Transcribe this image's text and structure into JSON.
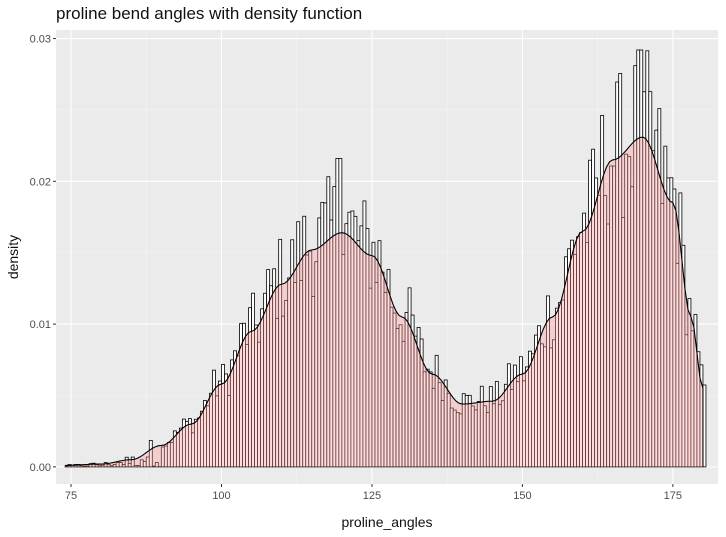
{
  "chart_data": {
    "type": "histogram",
    "title": "proline bend angles with density function",
    "xlabel": "proline_angles",
    "ylabel": "density",
    "xlim": [
      72.5,
      182.5
    ],
    "ylim": [
      -0.0012,
      0.0306
    ],
    "x_ticks": [
      75,
      100,
      125,
      150,
      175
    ],
    "y_ticks": [
      0.0,
      0.01,
      0.02,
      0.03
    ],
    "x_tick_labels": [
      "75",
      "100",
      "125",
      "150",
      "175"
    ],
    "y_tick_labels": [
      "0.00",
      "0.01",
      "0.02",
      "0.03"
    ],
    "grid": true,
    "colors": {
      "panel": "#ebebeb",
      "grid_major": "#ffffff",
      "grid_minor": "#f4f4f4",
      "bar_fill": "#ffffff",
      "bar_stroke": "#000000",
      "density_fill": "#ff9999",
      "density_fill_opacity": 0.35,
      "density_line": "#000000"
    },
    "bin_width": 0.5,
    "bins_start": 74,
    "histogram_peaks": [
      {
        "x": 119.5,
        "density": 0.0216
      },
      {
        "x": 169.5,
        "density": 0.0292
      }
    ],
    "density_curve": [
      {
        "x": 74,
        "y": 0.0001
      },
      {
        "x": 80,
        "y": 0.0002
      },
      {
        "x": 85,
        "y": 0.0005
      },
      {
        "x": 90,
        "y": 0.0015
      },
      {
        "x": 95,
        "y": 0.003
      },
      {
        "x": 100,
        "y": 0.0058
      },
      {
        "x": 105,
        "y": 0.0095
      },
      {
        "x": 110,
        "y": 0.0128
      },
      {
        "x": 115,
        "y": 0.0152
      },
      {
        "x": 120,
        "y": 0.0164
      },
      {
        "x": 125,
        "y": 0.0148
      },
      {
        "x": 130,
        "y": 0.0105
      },
      {
        "x": 135,
        "y": 0.0065
      },
      {
        "x": 140,
        "y": 0.0044
      },
      {
        "x": 145,
        "y": 0.0046
      },
      {
        "x": 150,
        "y": 0.0065
      },
      {
        "x": 155,
        "y": 0.0105
      },
      {
        "x": 160,
        "y": 0.0165
      },
      {
        "x": 165,
        "y": 0.0215
      },
      {
        "x": 170,
        "y": 0.0231
      },
      {
        "x": 175,
        "y": 0.0185
      },
      {
        "x": 178,
        "y": 0.0105
      },
      {
        "x": 180,
        "y": 0.0055
      }
    ]
  }
}
